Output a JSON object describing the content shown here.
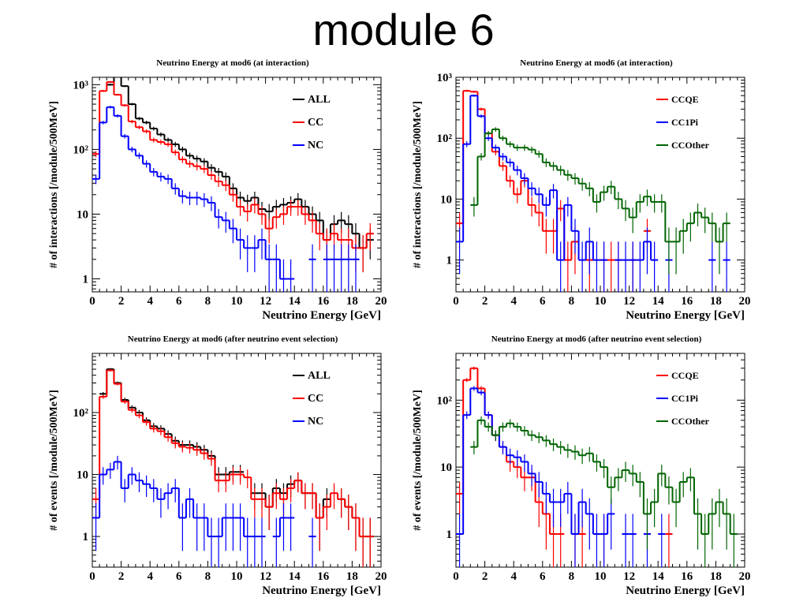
{
  "slide": {
    "title": "module 6"
  },
  "chart_data": [
    {
      "type": "line",
      "step": true,
      "title": "Neutrino Energy at mod6 (at interaction)",
      "xlabel": "Neutrino Energy [GeV]",
      "ylabel": "# of interactions [/module/500MeV]",
      "xlim": [
        0,
        20
      ],
      "ylim": [
        0.63,
        1300
      ],
      "yscale": "log",
      "xticks": [
        "0",
        "2",
        "4",
        "6",
        "8",
        "10",
        "12",
        "14",
        "16",
        "18",
        "20"
      ],
      "yticks": [
        {
          "v": 1,
          "label": "1"
        },
        {
          "v": 10,
          "label": "10"
        },
        {
          "v": 100,
          "label": "10²"
        },
        {
          "v": 1000,
          "label": "10³"
        }
      ],
      "legend": "top-right",
      "x": [
        0,
        0.5,
        1,
        1.5,
        2,
        2.5,
        3,
        3.5,
        4,
        4.5,
        5,
        5.5,
        6,
        6.5,
        7,
        7.5,
        8,
        8.5,
        9,
        9.5,
        10,
        10.5,
        11,
        11.5,
        12,
        12.5,
        13,
        13.5,
        14,
        14.5,
        15,
        15.5,
        16,
        16.5,
        17,
        17.5,
        18,
        18.5,
        19
      ],
      "series": [
        {
          "name": "ALL",
          "color": "#000000",
          "values": [
            null,
            null,
            1000,
            1400,
            950,
            500,
            300,
            260,
            210,
            170,
            140,
            120,
            100,
            80,
            72,
            65,
            52,
            45,
            38,
            25,
            18,
            16,
            18,
            12,
            11,
            13,
            14,
            15,
            17,
            13,
            10,
            8,
            4,
            7,
            8,
            7,
            5,
            3,
            4
          ]
        },
        {
          "name": "CC",
          "color": "#ff0000",
          "values": [
            85,
            800,
            1100,
            700,
            480,
            270,
            220,
            190,
            140,
            130,
            120,
            90,
            70,
            60,
            55,
            50,
            40,
            32,
            28,
            20,
            13,
            11,
            14,
            10,
            6,
            9,
            10,
            13,
            13,
            10,
            8,
            5,
            4,
            5,
            4,
            4,
            3,
            3,
            5
          ]
        },
        {
          "name": "NC",
          "color": "#0000ff",
          "values": [
            35,
            260,
            450,
            330,
            160,
            100,
            80,
            60,
            45,
            38,
            35,
            25,
            19,
            18,
            18,
            17,
            15,
            9,
            8,
            6,
            4,
            3,
            3,
            4,
            2,
            2,
            1,
            1,
            null,
            null,
            2,
            null,
            2,
            2,
            2,
            2,
            2,
            null,
            null
          ]
        }
      ]
    },
    {
      "type": "line",
      "step": true,
      "title": "Neutrino Energy at mod6 (at interaction)",
      "xlabel": "Neutrino Energy [GeV]",
      "ylabel": "# of interactions [/module/500MeV]",
      "xlim": [
        0,
        20
      ],
      "ylim": [
        0.3,
        1000
      ],
      "yscale": "log",
      "xticks": [
        "0",
        "2",
        "4",
        "6",
        "8",
        "10",
        "12",
        "14",
        "16",
        "18",
        "20"
      ],
      "yticks": [
        {
          "v": 1,
          "label": "1"
        },
        {
          "v": 10,
          "label": "10"
        },
        {
          "v": 100,
          "label": "10²"
        },
        {
          "v": 1000,
          "label": "10³"
        }
      ],
      "legend": "top-right",
      "x": [
        0,
        0.5,
        1,
        1.5,
        2,
        2.5,
        3,
        3.5,
        4,
        4.5,
        5,
        5.5,
        6,
        6.5,
        7,
        7.5,
        8,
        8.5,
        9,
        9.5,
        10,
        10.5,
        11,
        11.5,
        12,
        12.5,
        13,
        13.5,
        14,
        14.5,
        15,
        15.5,
        16,
        16.5,
        17,
        17.5,
        18,
        18.5,
        19
      ],
      "series": [
        {
          "name": "CCQE",
          "color": "#ff0000",
          "values": [
            4,
            600,
            580,
            300,
            120,
            60,
            35,
            20,
            12,
            20,
            8,
            6,
            3,
            3,
            7,
            1,
            2,
            null,
            1,
            null,
            1,
            1,
            1,
            null,
            1,
            null,
            3,
            null,
            null,
            null,
            null,
            null,
            null,
            null,
            null,
            null,
            null,
            null,
            null
          ]
        },
        {
          "name": "CC1Pi",
          "color": "#0000ff",
          "values": [
            2,
            80,
            500,
            230,
            100,
            70,
            50,
            40,
            30,
            22,
            15,
            12,
            8,
            14,
            1,
            8,
            3,
            1,
            2,
            1,
            1,
            null,
            1,
            1,
            1,
            1,
            2,
            1,
            null,
            1,
            null,
            null,
            null,
            null,
            null,
            1,
            null,
            1,
            null
          ]
        },
        {
          "name": "CCOther",
          "color": "#006400",
          "values": [
            null,
            null,
            8,
            50,
            120,
            140,
            100,
            80,
            70,
            70,
            65,
            55,
            40,
            35,
            30,
            25,
            22,
            18,
            15,
            9,
            13,
            16,
            10,
            7,
            5,
            9,
            11,
            9,
            9,
            2,
            2,
            3,
            4,
            6,
            5,
            4,
            2,
            4,
            null
          ]
        }
      ]
    },
    {
      "type": "line",
      "step": true,
      "title": "Neutrino Energy at mod6 (after neutrino event selection)",
      "xlabel": "Neutrino Energy [GeV]",
      "ylabel": "# of events [/module/500MeV]",
      "xlim": [
        0,
        20
      ],
      "ylim": [
        0.32,
        900
      ],
      "yscale": "log",
      "xticks": [
        "0",
        "2",
        "4",
        "6",
        "8",
        "10",
        "12",
        "14",
        "16",
        "18",
        "20"
      ],
      "yticks": [
        {
          "v": 1,
          "label": "1"
        },
        {
          "v": 10,
          "label": "10"
        },
        {
          "v": 100,
          "label": "10²"
        }
      ],
      "legend": "top-right",
      "x": [
        0,
        0.5,
        1,
        1.5,
        2,
        2.5,
        3,
        3.5,
        4,
        4.5,
        5,
        5.5,
        6,
        6.5,
        7,
        7.5,
        8,
        8.5,
        9,
        9.5,
        10,
        10.5,
        11,
        11.5,
        12,
        12.5,
        13,
        13.5,
        14,
        14.5,
        15,
        15.5,
        16,
        16.5,
        17,
        17.5,
        18,
        18.5,
        19
      ],
      "series": [
        {
          "name": "ALL",
          "color": "#000000",
          "values": [
            null,
            200,
            500,
            300,
            160,
            120,
            100,
            75,
            60,
            55,
            45,
            35,
            30,
            30,
            28,
            25,
            20,
            10,
            10,
            11,
            11,
            null,
            5,
            5,
            3,
            6,
            5,
            7,
            8,
            5,
            5,
            2,
            4,
            null,
            4,
            3,
            2,
            1,
            1
          ]
        },
        {
          "name": "CC",
          "color": "#ff0000",
          "values": [
            4,
            180,
            480,
            290,
            150,
            110,
            90,
            70,
            55,
            50,
            40,
            32,
            28,
            27,
            25,
            22,
            18,
            8,
            8,
            10,
            10,
            9,
            4,
            4,
            3,
            5,
            4,
            6,
            8,
            5,
            5,
            2,
            3,
            5,
            4,
            3,
            2,
            1,
            1
          ]
        },
        {
          "name": "NC",
          "color": "#0000ff",
          "values": [
            2,
            10,
            12,
            16,
            6,
            10,
            8,
            7,
            6,
            4,
            5,
            6,
            2,
            4,
            2,
            2,
            1,
            1,
            2,
            2,
            2,
            1,
            1,
            1,
            null,
            1,
            2,
            2,
            null,
            null,
            1,
            null,
            null,
            null,
            null,
            null,
            null,
            null,
            null
          ]
        }
      ]
    },
    {
      "type": "line",
      "step": true,
      "title": "Neutrino Energy at mod6 (after neutrino event selection)",
      "xlabel": "Neutrino Energy [GeV]",
      "ylabel": "# of events [/module/500MeV]",
      "xlim": [
        0,
        20
      ],
      "ylim": [
        0.32,
        500
      ],
      "yscale": "log",
      "xticks": [
        "0",
        "2",
        "4",
        "6",
        "8",
        "10",
        "12",
        "14",
        "16",
        "18",
        "20"
      ],
      "yticks": [
        {
          "v": 1,
          "label": "1"
        },
        {
          "v": 10,
          "label": "10"
        },
        {
          "v": 100,
          "label": "10²"
        }
      ],
      "legend": "top-right",
      "x": [
        0,
        0.5,
        1,
        1.5,
        2,
        2.5,
        3,
        3.5,
        4,
        4.5,
        5,
        5.5,
        6,
        6.5,
        7,
        7.5,
        8,
        8.5,
        9,
        9.5,
        10,
        10.5,
        11,
        11.5,
        12,
        12.5,
        13,
        13.5,
        14,
        14.5,
        15,
        15.5,
        16,
        16.5,
        17,
        17.5,
        18,
        18.5,
        19
      ],
      "series": [
        {
          "name": "CCQE",
          "color": "#ff0000",
          "values": [
            4,
            200,
            300,
            150,
            60,
            30,
            20,
            12,
            10,
            7,
            7,
            3,
            2,
            1,
            1,
            null,
            1,
            1,
            null,
            null,
            1,
            null,
            null,
            null,
            null,
            null,
            null,
            null,
            null,
            1,
            null,
            null,
            null,
            null,
            null,
            null,
            null,
            null,
            null
          ]
        },
        {
          "name": "CC1Pi",
          "color": "#0000ff",
          "values": [
            1,
            60,
            150,
            130,
            60,
            30,
            20,
            15,
            14,
            12,
            8,
            6,
            4,
            3,
            3,
            4,
            1,
            3,
            2,
            1,
            1,
            2,
            null,
            1,
            1,
            null,
            1,
            null,
            1,
            null,
            null,
            null,
            null,
            null,
            null,
            null,
            null,
            null,
            null
          ]
        },
        {
          "name": "CCOther",
          "color": "#006400",
          "values": [
            null,
            null,
            20,
            50,
            40,
            30,
            40,
            45,
            40,
            35,
            30,
            28,
            25,
            22,
            20,
            18,
            17,
            15,
            16,
            12,
            10,
            5,
            7,
            9,
            8,
            6,
            2,
            3,
            8,
            5,
            3,
            6,
            7,
            2,
            1,
            2,
            3,
            2,
            1
          ]
        }
      ]
    }
  ]
}
